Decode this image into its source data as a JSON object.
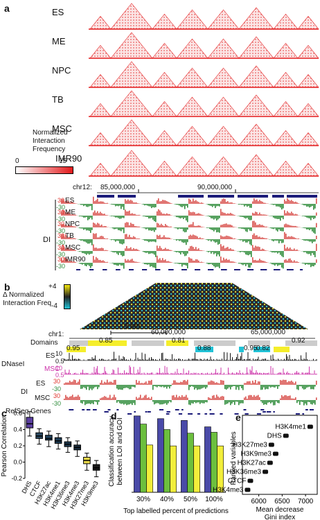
{
  "panel_a": {
    "letter": "a",
    "cell_types": [
      "ES",
      "ME",
      "NPC",
      "TB",
      "MSC",
      "IMR90"
    ],
    "colorbar": {
      "title_lines": [
        "Normalized",
        "Interaction",
        "Frequency"
      ],
      "min": "0",
      "max": "15"
    },
    "chrom": {
      "name": "chr12:",
      "ticks": [
        "85,000,000",
        "90,000,000"
      ]
    },
    "di_label": "DI",
    "di_tracks": [
      "ES",
      "ME",
      "NPC",
      "TB",
      "MSC",
      "IMR90"
    ],
    "di_scale_top": "30",
    "di_scale_bottom": "-30"
  },
  "panel_b": {
    "letter": "b",
    "colorbar": {
      "max": "+4",
      "min": "-4",
      "title_lines": [
        "Δ Normalized",
        "Interaction Freq"
      ]
    },
    "scale_bar": "5 Mb",
    "chrom": {
      "name": "chr1:",
      "ticks": [
        "60,000,000",
        "65,000,000"
      ]
    },
    "domains_label": "Domains",
    "domain_values": [
      "0.95",
      "0.85",
      "0.81",
      "0.88",
      "0.95",
      "0.82",
      "0.92"
    ],
    "dnase_label": "DNaseI",
    "dnase_tracks": [
      "ES",
      "MSC"
    ],
    "dnase_scales": [
      "10",
      "0.5",
      "10",
      "0.5"
    ],
    "di_label": "DI",
    "di_tracks": [
      "ES",
      "MSC"
    ],
    "di_scales": [
      "30",
      "-30",
      "30",
      "-30"
    ],
    "refseq_label": "RefSeq Genes"
  },
  "panel_c": {
    "letter": "c",
    "chart_data": {
      "type": "box",
      "ylabel": "Pearson Correlation",
      "categories": [
        "DHS",
        "CTCF",
        "H3K27ac",
        "H3K4me1",
        "H3K36me3",
        "H3K4me3",
        "H3K27me3",
        "H3K9me3"
      ],
      "ylim": [
        -0.2,
        0.6
      ],
      "yticks": [
        "0.6",
        "0.4",
        "0.2",
        "0.0",
        "-0.2"
      ],
      "boxes": [
        {
          "q1": 0.42,
          "median": 0.47,
          "q3": 0.55,
          "min": 0.32,
          "max": 0.62,
          "color": "#5b3fa0"
        },
        {
          "q1": 0.29,
          "median": 0.32,
          "q3": 0.36,
          "min": 0.22,
          "max": 0.41,
          "color": "#2c4a63"
        },
        {
          "q1": 0.27,
          "median": 0.29,
          "q3": 0.33,
          "min": 0.19,
          "max": 0.38,
          "color": "#23445f"
        },
        {
          "q1": 0.23,
          "median": 0.26,
          "q3": 0.3,
          "min": 0.16,
          "max": 0.35,
          "color": "#1f3d55"
        },
        {
          "q1": 0.19,
          "median": 0.22,
          "q3": 0.25,
          "min": 0.12,
          "max": 0.3,
          "color": "#1e3a50"
        },
        {
          "q1": 0.15,
          "median": 0.18,
          "q3": 0.21,
          "min": 0.07,
          "max": 0.26,
          "color": "#1d3040"
        },
        {
          "q1": -0.02,
          "median": 0.02,
          "q3": 0.06,
          "min": -0.1,
          "max": 0.11,
          "color": "#e8d84a"
        },
        {
          "q1": -0.1,
          "median": -0.07,
          "q3": -0.03,
          "min": -0.18,
          "max": 0.02,
          "color": "#1a1a1a"
        }
      ]
    }
  },
  "panel_d": {
    "letter": "d",
    "chart_data": {
      "type": "bar",
      "ylabel_lines": [
        "Classification accuracy",
        "between LOI and GOI"
      ],
      "xlabel": "Top labelled percent of predictions",
      "categories": [
        "30%",
        "40%",
        "50%",
        "100%"
      ],
      "ylim": [
        0,
        0.9
      ],
      "series": [
        {
          "values": [
            0.84,
            0.81,
            0.79,
            0.72
          ],
          "color": "#4a4aa8"
        },
        {
          "values": [
            0.75,
            0.69,
            0.65,
            0.66
          ],
          "color": "#6cbf3e"
        },
        {
          "values": [
            0.52,
            0.51,
            0.51,
            0.51
          ],
          "color": "#f2ee3a"
        }
      ]
    }
  },
  "panel_e": {
    "letter": "e",
    "chart_data": {
      "type": "scatter",
      "ylabel": "Ranked variables",
      "xlabel_lines": [
        "Mean decrease",
        "Gini index"
      ],
      "xticks": [
        "6000",
        "6500",
        "7000"
      ],
      "xlim": [
        5650,
        7250
      ],
      "variables": [
        {
          "name": "H3K4me1",
          "value": 7100
        },
        {
          "name": "DHS",
          "value": 6580
        },
        {
          "name": "H3K27me3",
          "value": 6270
        },
        {
          "name": "H3K9me3",
          "value": 6360
        },
        {
          "name": "H3K27ac",
          "value": 6240
        },
        {
          "name": "H3K36me3",
          "value": 6140
        },
        {
          "name": "CTCF",
          "value": 5820
        },
        {
          "name": "H3K4me3",
          "value": 5760
        }
      ]
    }
  }
}
